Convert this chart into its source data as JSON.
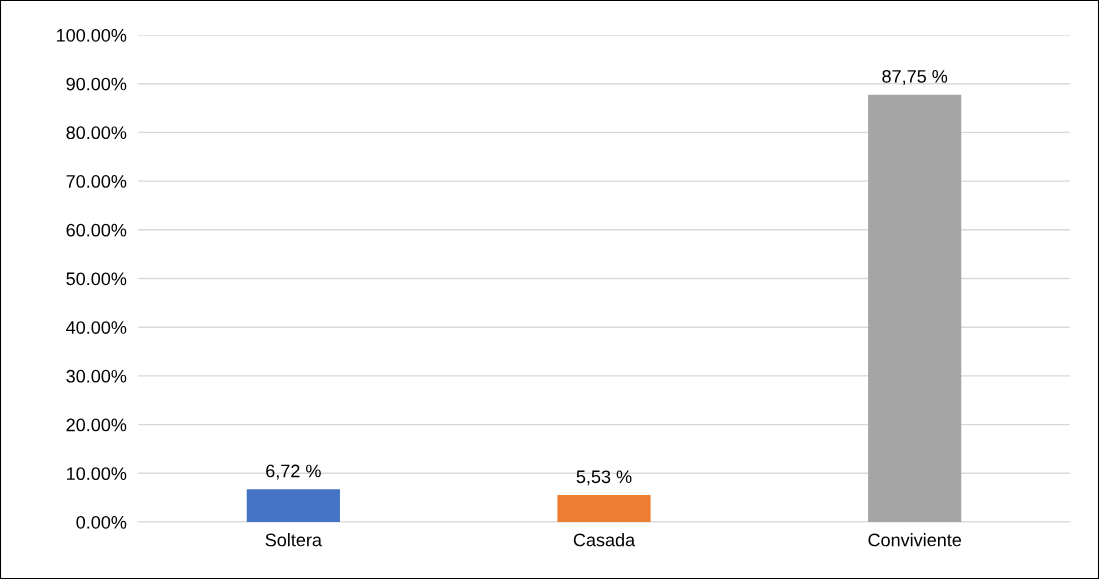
{
  "chart_data": {
    "type": "bar",
    "categories": [
      "Soltera",
      "Casada",
      "Conviviente"
    ],
    "values": [
      6.72,
      5.53,
      87.75
    ],
    "colors": [
      "#4472c4",
      "#ed7d31",
      "#a5a5a5"
    ],
    "value_labels": [
      "6,72 %",
      "5,53 %",
      "87,75 %"
    ],
    "ylim": [
      0,
      100
    ],
    "yticks": [
      {
        "value": 0,
        "label": "0.00%"
      },
      {
        "value": 10,
        "label": "10.00%"
      },
      {
        "value": 20,
        "label": "20.00%"
      },
      {
        "value": 30,
        "label": "30.00%"
      },
      {
        "value": 40,
        "label": "40.00%"
      },
      {
        "value": 50,
        "label": "50.00%"
      },
      {
        "value": 60,
        "label": "60.00%"
      },
      {
        "value": 70,
        "label": "70.00%"
      },
      {
        "value": 80,
        "label": "80.00%"
      },
      {
        "value": 90,
        "label": "90.00%"
      },
      {
        "value": 100,
        "label": "100.00%"
      }
    ],
    "grid": "y"
  }
}
